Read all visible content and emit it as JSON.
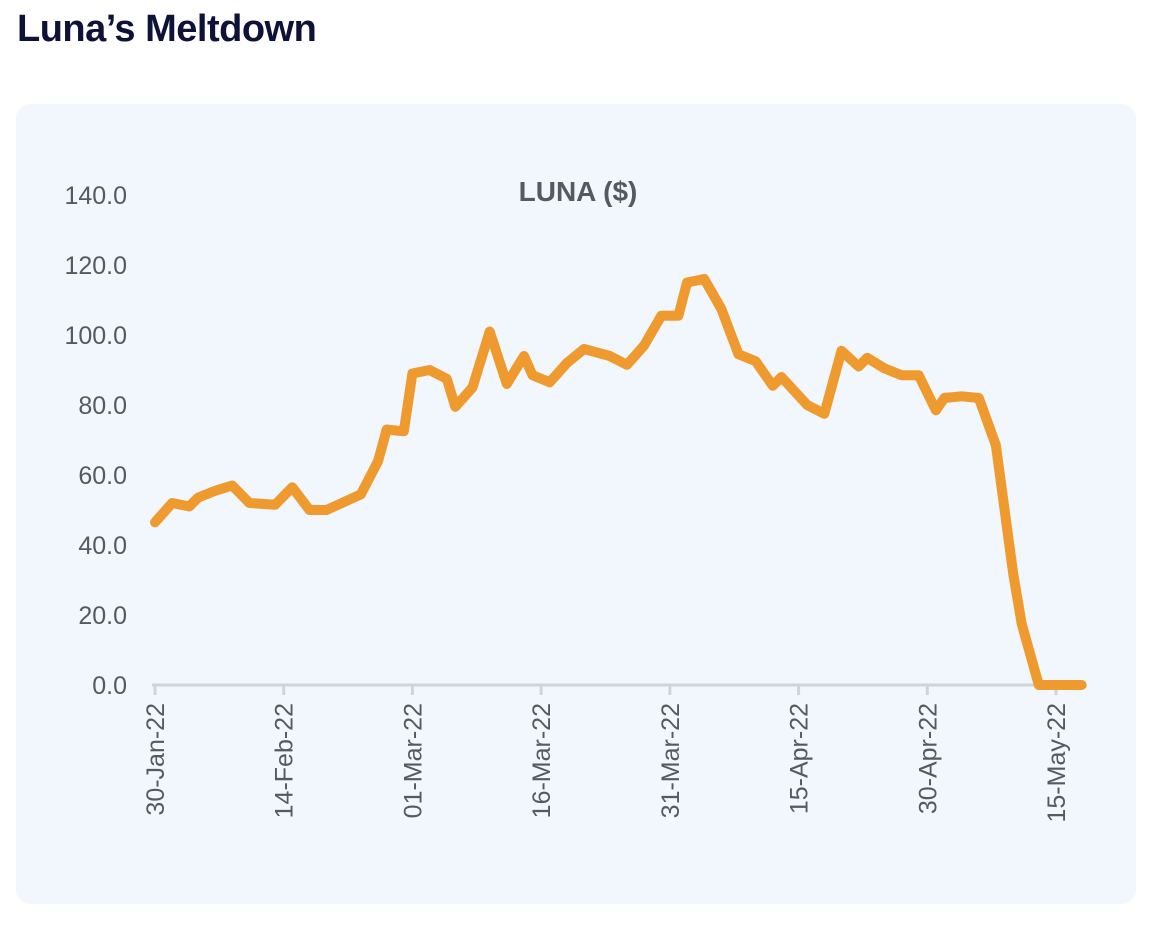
{
  "page": {
    "title": "Luna’s Meltdown"
  },
  "colors": {
    "line": "#ef9a2f",
    "axis": "#cfd3dc",
    "card": "#f1f7fc",
    "title": "#0e1238"
  },
  "chart_data": {
    "type": "line",
    "title": "LUNA ($)",
    "xlabel": "",
    "ylabel": "",
    "ylim": [
      0,
      140
    ],
    "yticks": [
      "0.0",
      "20.0",
      "40.0",
      "60.0",
      "80.0",
      "100.0",
      "120.0",
      "140.0"
    ],
    "xticks": [
      {
        "date": "2022-01-30",
        "label": "30-Jan-22"
      },
      {
        "date": "2022-02-14",
        "label": "14-Feb-22"
      },
      {
        "date": "2022-03-01",
        "label": "01-Mar-22"
      },
      {
        "date": "2022-03-16",
        "label": "16-Mar-22"
      },
      {
        "date": "2022-03-31",
        "label": "31-Mar-22"
      },
      {
        "date": "2022-04-15",
        "label": "15-Apr-22"
      },
      {
        "date": "2022-04-30",
        "label": "30-Apr-22"
      },
      {
        "date": "2022-05-15",
        "label": "15-May-22"
      }
    ],
    "grid": false,
    "series": [
      {
        "name": "",
        "points": [
          [
            "2022-01-30",
            46.5
          ],
          [
            "2022-02-01",
            52.0
          ],
          [
            "2022-02-03",
            51.0
          ],
          [
            "2022-02-04",
            53.5
          ],
          [
            "2022-02-06",
            55.5
          ],
          [
            "2022-02-08",
            57.0
          ],
          [
            "2022-02-10",
            52.0
          ],
          [
            "2022-02-13",
            51.5
          ],
          [
            "2022-02-15",
            56.5
          ],
          [
            "2022-02-17",
            50.0
          ],
          [
            "2022-02-19",
            50.0
          ],
          [
            "2022-02-23",
            54.5
          ],
          [
            "2022-02-25",
            64.0
          ],
          [
            "2022-02-26",
            73.0
          ],
          [
            "2022-02-28",
            72.5
          ],
          [
            "2022-03-01",
            89.0
          ],
          [
            "2022-03-03",
            90.0
          ],
          [
            "2022-03-05",
            87.5
          ],
          [
            "2022-03-06",
            79.5
          ],
          [
            "2022-03-08",
            85.0
          ],
          [
            "2022-03-10",
            101.0
          ],
          [
            "2022-03-12",
            86.0
          ],
          [
            "2022-03-14",
            94.0
          ],
          [
            "2022-03-15",
            88.5
          ],
          [
            "2022-03-17",
            86.5
          ],
          [
            "2022-03-19",
            92.0
          ],
          [
            "2022-03-21",
            96.0
          ],
          [
            "2022-03-24",
            94.0
          ],
          [
            "2022-03-26",
            91.5
          ],
          [
            "2022-03-28",
            97.0
          ],
          [
            "2022-03-30",
            105.5
          ],
          [
            "2022-04-01",
            105.5
          ],
          [
            "2022-04-02",
            115.0
          ],
          [
            "2022-04-04",
            116.0
          ],
          [
            "2022-04-06",
            107.5
          ],
          [
            "2022-04-08",
            94.5
          ],
          [
            "2022-04-10",
            92.5
          ],
          [
            "2022-04-12",
            85.5
          ],
          [
            "2022-04-13",
            88.0
          ],
          [
            "2022-04-16",
            80.0
          ],
          [
            "2022-04-18",
            77.5
          ],
          [
            "2022-04-20",
            95.5
          ],
          [
            "2022-04-22",
            91.0
          ],
          [
            "2022-04-23",
            93.5
          ],
          [
            "2022-04-25",
            90.5
          ],
          [
            "2022-04-27",
            88.5
          ],
          [
            "2022-04-29",
            88.5
          ],
          [
            "2022-05-01",
            78.5
          ],
          [
            "2022-05-02",
            82.0
          ],
          [
            "2022-05-04",
            82.5
          ],
          [
            "2022-05-06",
            82.0
          ],
          [
            "2022-05-08",
            68.5
          ],
          [
            "2022-05-10",
            32.0
          ],
          [
            "2022-05-11",
            17.5
          ],
          [
            "2022-05-13",
            0.0
          ],
          [
            "2022-05-15",
            0.0
          ],
          [
            "2022-05-18",
            0.0
          ]
        ]
      }
    ]
  }
}
